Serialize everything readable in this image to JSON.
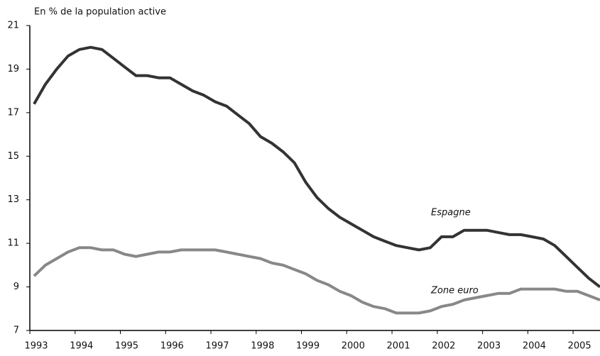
{
  "chart_data": {
    "type": "line",
    "y_label": "En % de la population active",
    "categories": [
      "1993",
      null,
      null,
      null,
      "1994",
      null,
      null,
      null,
      "1995",
      null,
      null,
      null,
      "1996",
      null,
      null,
      null,
      "1997",
      null,
      null,
      null,
      "1998",
      null,
      null,
      null,
      "1999",
      null,
      null,
      null,
      "2000",
      null,
      null,
      null,
      "2001",
      null,
      null,
      null,
      "2002",
      null,
      null,
      null,
      "2003",
      null,
      null,
      null,
      "2004",
      null,
      null,
      null,
      "2005",
      null,
      null
    ],
    "series": [
      {
        "name": "Espagne",
        "color": "#333333",
        "values": [
          17.4,
          18.3,
          19.0,
          19.6,
          19.9,
          20.0,
          19.9,
          19.5,
          19.1,
          18.7,
          18.7,
          18.6,
          18.6,
          18.3,
          18.0,
          17.8,
          17.5,
          17.3,
          16.9,
          16.5,
          15.9,
          15.6,
          15.2,
          14.7,
          13.8,
          13.1,
          12.6,
          12.2,
          11.9,
          11.6,
          11.3,
          11.1,
          10.9,
          10.8,
          10.7,
          10.8,
          11.3,
          11.3,
          11.6,
          11.6,
          11.6,
          11.5,
          11.4,
          11.4,
          11.3,
          11.2,
          10.9,
          10.4,
          9.9,
          9.4,
          9.0
        ]
      },
      {
        "name": "Zone euro",
        "color": "#888888",
        "values": [
          9.5,
          10.0,
          10.3,
          10.6,
          10.8,
          10.8,
          10.7,
          10.7,
          10.5,
          10.4,
          10.5,
          10.6,
          10.6,
          10.7,
          10.7,
          10.7,
          10.7,
          10.6,
          10.5,
          10.4,
          10.3,
          10.1,
          10.0,
          9.8,
          9.6,
          9.3,
          9.1,
          8.8,
          8.6,
          8.3,
          8.1,
          8.0,
          7.8,
          7.8,
          7.8,
          7.9,
          8.1,
          8.2,
          8.4,
          8.5,
          8.6,
          8.7,
          8.7,
          8.9,
          8.9,
          8.9,
          8.9,
          8.8,
          8.8,
          8.6,
          8.4
        ]
      }
    ],
    "ylim": [
      7,
      21
    ],
    "yticks": [
      7,
      9,
      11,
      13,
      15,
      17,
      19,
      21
    ]
  }
}
